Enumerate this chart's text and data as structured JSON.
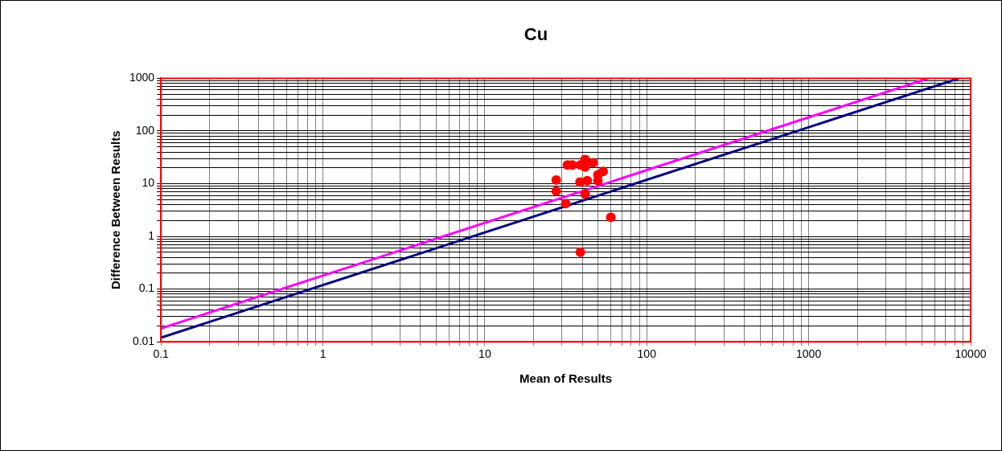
{
  "chart_data": {
    "type": "scatter",
    "title": "Cu",
    "xlabel": "Mean of Results",
    "ylabel": "Difference Between Results",
    "log": "xy",
    "grid": true,
    "legend": false,
    "xlim": [
      0.1,
      10000
    ],
    "ylim": [
      0.01,
      1000
    ],
    "xticks": [
      0.1,
      {
        "value": 0.2,
        "label": null
      },
      {
        "value": 0.3,
        "label": null
      },
      {
        "value": 0.4,
        "label": null
      },
      {
        "value": 0.5,
        "label": null
      },
      {
        "value": 0.6,
        "label": null
      },
      {
        "value": 0.7,
        "label": null
      },
      {
        "value": 0.8,
        "label": null
      },
      {
        "value": 0.9,
        "label": null
      },
      1,
      {
        "value": 2,
        "label": null
      },
      {
        "value": 3,
        "label": null
      },
      {
        "value": 4,
        "label": null
      },
      {
        "value": 5,
        "label": null
      },
      {
        "value": 6,
        "label": null
      },
      {
        "value": 7,
        "label": null
      },
      {
        "value": 8,
        "label": null
      },
      {
        "value": 9,
        "label": null
      },
      10,
      {
        "value": 20,
        "label": null
      },
      {
        "value": 30,
        "label": null
      },
      {
        "value": 40,
        "label": null
      },
      {
        "value": 50,
        "label": null
      },
      {
        "value": 60,
        "label": null
      },
      {
        "value": 70,
        "label": null
      },
      {
        "value": 80,
        "label": null
      },
      {
        "value": 90,
        "label": null
      },
      100,
      {
        "value": 200,
        "label": null
      },
      {
        "value": 300,
        "label": null
      },
      {
        "value": 400,
        "label": null
      },
      {
        "value": 500,
        "label": null
      },
      {
        "value": 600,
        "label": null
      },
      {
        "value": 700,
        "label": null
      },
      {
        "value": 800,
        "label": null
      },
      {
        "value": 900,
        "label": null
      },
      1000,
      {
        "value": 2000,
        "label": null
      },
      {
        "value": 3000,
        "label": null
      },
      {
        "value": 4000,
        "label": null
      },
      {
        "value": 5000,
        "label": null
      },
      {
        "value": 6000,
        "label": null
      },
      {
        "value": 7000,
        "label": null
      },
      {
        "value": 8000,
        "label": null
      },
      {
        "value": 9000,
        "label": null
      },
      10000
    ],
    "yticks": [
      0.01,
      {
        "value": 0.02,
        "label": null
      },
      {
        "value": 0.03,
        "label": null
      },
      {
        "value": 0.04,
        "label": null
      },
      {
        "value": 0.05,
        "label": null
      },
      {
        "value": 0.06,
        "label": null
      },
      {
        "value": 0.07,
        "label": null
      },
      {
        "value": 0.08,
        "label": null
      },
      {
        "value": 0.09,
        "label": null
      },
      0.1,
      {
        "value": 0.2,
        "label": null
      },
      {
        "value": 0.3,
        "label": null
      },
      {
        "value": 0.4,
        "label": null
      },
      {
        "value": 0.5,
        "label": null
      },
      {
        "value": 0.6,
        "label": null
      },
      {
        "value": 0.7,
        "label": null
      },
      {
        "value": 0.8,
        "label": null
      },
      {
        "value": 0.9,
        "label": null
      },
      1,
      {
        "value": 2,
        "label": null
      },
      {
        "value": 3,
        "label": null
      },
      {
        "value": 4,
        "label": null
      },
      {
        "value": 5,
        "label": null
      },
      {
        "value": 6,
        "label": null
      },
      {
        "value": 7,
        "label": null
      },
      {
        "value": 8,
        "label": null
      },
      {
        "value": 9,
        "label": null
      },
      10,
      {
        "value": 20,
        "label": null
      },
      {
        "value": 30,
        "label": null
      },
      {
        "value": 40,
        "label": null
      },
      {
        "value": 50,
        "label": null
      },
      {
        "value": 60,
        "label": null
      },
      {
        "value": 70,
        "label": null
      },
      {
        "value": 80,
        "label": null
      },
      {
        "value": 90,
        "label": null
      },
      100,
      {
        "value": 200,
        "label": null
      },
      {
        "value": 300,
        "label": null
      },
      {
        "value": 400,
        "label": null
      },
      {
        "value": 500,
        "label": null
      },
      {
        "value": 600,
        "label": null
      },
      {
        "value": 700,
        "label": null
      },
      {
        "value": 800,
        "label": null
      },
      {
        "value": 900,
        "label": null
      },
      1000
    ],
    "series": [
      {
        "color": "#ff0000",
        "marker": "circle",
        "x": [
          32.4,
          34.7,
          38.9,
          41.6,
          41.6,
          46.6,
          53.8,
          49.9,
          49.9,
          27.6,
          38.7,
          42.9,
          27.6,
          41.6,
          31.6,
          60,
          38.9
        ],
        "values": [
          22.7,
          22.7,
          22.7,
          28.6,
          20.7,
          25,
          17.1,
          14.7,
          11.4,
          11.7,
          10.7,
          11.4,
          7.2,
          6.4,
          4.2,
          2.3,
          0.5
        ]
      },
      {
        "type": "line",
        "color": "#ff00ff",
        "marker": "none",
        "x": [
          0.1,
          5500
        ],
        "values": [
          0.018,
          1000
        ]
      },
      {
        "type": "line",
        "color": "#000080",
        "marker": "none",
        "x": [
          0.1,
          8500
        ],
        "values": [
          0.012,
          1000
        ]
      }
    ]
  }
}
